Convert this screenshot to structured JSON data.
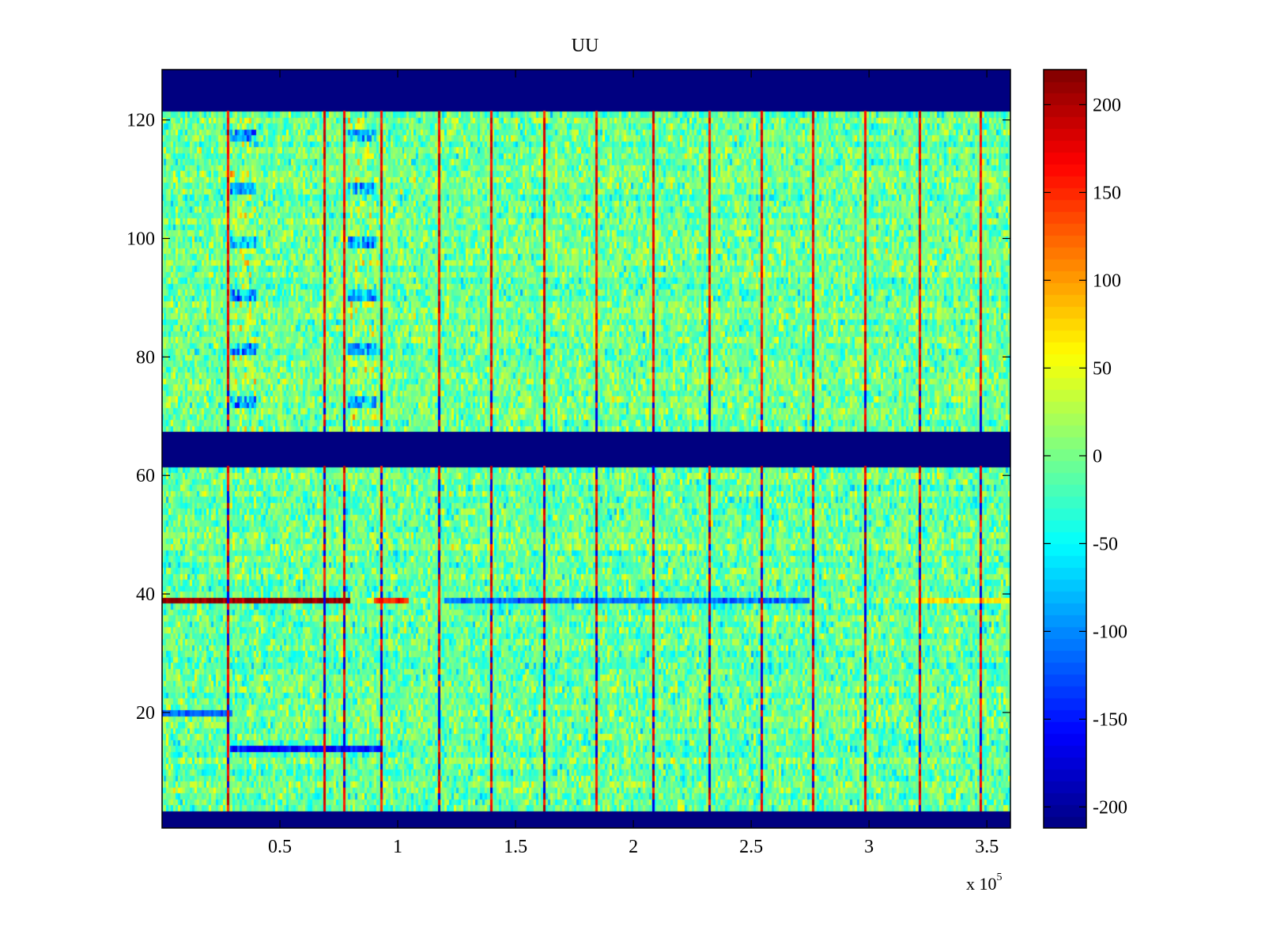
{
  "chart_data": {
    "type": "heatmap",
    "title": "UU",
    "xlabel": "",
    "ylabel": "",
    "x_multiplier_label": "x 10",
    "x_multiplier_exponent": "5",
    "xlim": [
      0,
      360000
    ],
    "ylim": [
      0.5,
      128.5
    ],
    "xticks": [
      50000,
      100000,
      150000,
      200000,
      250000,
      300000,
      350000
    ],
    "xtick_labels": [
      "0.5",
      "1",
      "1.5",
      "2",
      "2.5",
      "3",
      "3.5"
    ],
    "yticks": [
      20,
      40,
      60,
      80,
      100,
      120
    ],
    "ytick_labels": [
      "20",
      "40",
      "60",
      "80",
      "100",
      "120"
    ],
    "colormap": "jet",
    "clim": [
      -212,
      220
    ],
    "colorbar_ticks": [
      -200,
      -150,
      -100,
      -50,
      0,
      50,
      100,
      150,
      200
    ],
    "colorbar_tick_labels": [
      "-200",
      "-150",
      "-100",
      "-50",
      "0",
      "50",
      "100",
      "150",
      "200"
    ],
    "n_rows": 128,
    "n_cols": 360,
    "background_noise": {
      "mean": -5,
      "spread": 45,
      "seed": 7
    },
    "masked_rows": [
      [
        1,
        3
      ],
      [
        62,
        67
      ],
      [
        122,
        128
      ]
    ],
    "masked_value": -212,
    "spike_columns_x": [
      27900,
      68800,
      77200,
      93000,
      117400,
      139600,
      162100,
      184200,
      208400,
      232200,
      254400,
      276200,
      298300,
      321500,
      347300
    ],
    "spike_value": 200,
    "warm_regions": [
      {
        "x": [
          29000,
          40000
        ],
        "rows": [
          68,
          121
        ],
        "value": 60
      },
      {
        "x": [
          79000,
          91000
        ],
        "rows": [
          68,
          121
        ],
        "value": 60
      }
    ],
    "row_features": [
      {
        "row": 39,
        "x": [
          0,
          80000
        ],
        "value": 215
      },
      {
        "row": 39,
        "x": [
          90000,
          105000
        ],
        "value": 150
      },
      {
        "row": 39,
        "x": [
          120000,
          275000
        ],
        "value": -110
      },
      {
        "row": 39,
        "x": [
          320000,
          360000
        ],
        "value": 70
      },
      {
        "row": 20,
        "x": [
          0,
          30000
        ],
        "value": -120
      },
      {
        "row": 14,
        "x": [
          29000,
          93000
        ],
        "value": -150
      }
    ]
  }
}
